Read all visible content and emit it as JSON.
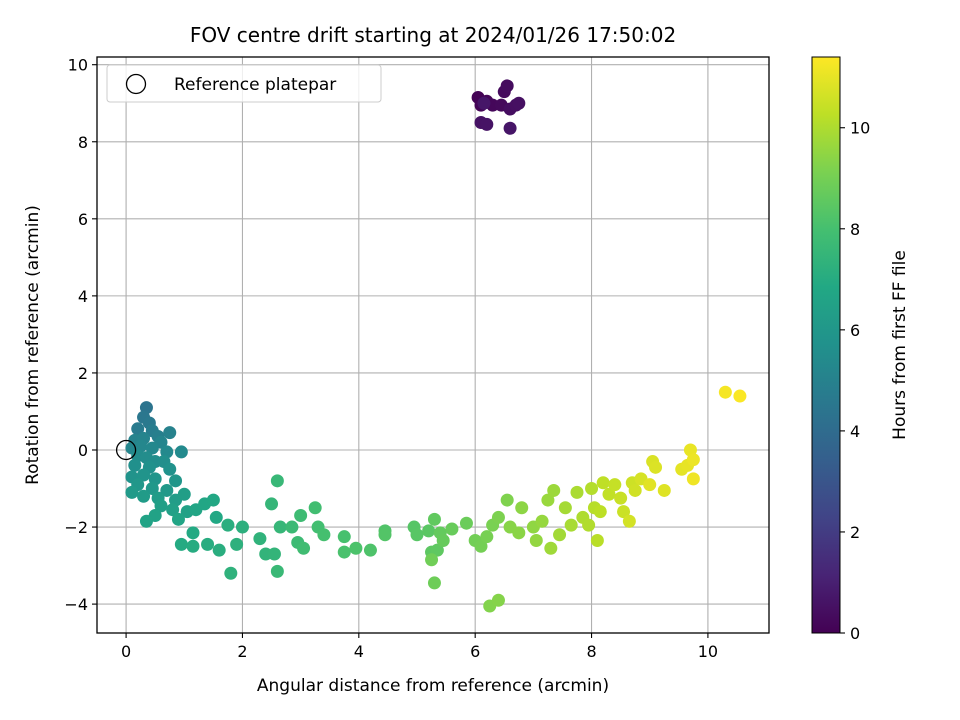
{
  "chart_data": {
    "type": "scatter",
    "title": "FOV centre drift starting at 2024/01/26 17:50:02",
    "xlabel": "Angular distance from reference (arcmin)",
    "ylabel": "Rotation from reference (arcmin)",
    "xlim": [
      -0.5,
      11.05
    ],
    "ylim": [
      -4.75,
      10.2
    ],
    "xticks": [
      "0",
      "2",
      "4",
      "6",
      "8",
      "10"
    ],
    "yticks": [
      "−4",
      "−2",
      "0",
      "2",
      "4",
      "6",
      "8",
      "10"
    ],
    "grid": true,
    "legend": {
      "placement": "upper-left",
      "label": "Reference platepar",
      "marker": "open-circle"
    },
    "reference_point": {
      "x": 0,
      "y": 0
    },
    "colorbar": {
      "label": "Hours from first FF file",
      "colormap": "viridis",
      "range": [
        0,
        11.4
      ],
      "ticks": [
        "0",
        "2",
        "4",
        "6",
        "8",
        "10"
      ]
    },
    "series": [
      {
        "color_variable": "hours",
        "points": [
          {
            "x": 6.05,
            "y": 9.15,
            "h": 0.05
          },
          {
            "x": 6.1,
            "y": 8.95,
            "h": 0.1
          },
          {
            "x": 6.2,
            "y": 9.05,
            "h": 0.15
          },
          {
            "x": 6.3,
            "y": 8.95,
            "h": 0.2
          },
          {
            "x": 6.45,
            "y": 8.95,
            "h": 0.25
          },
          {
            "x": 6.5,
            "y": 9.3,
            "h": 0.3
          },
          {
            "x": 6.55,
            "y": 9.45,
            "h": 0.35
          },
          {
            "x": 6.6,
            "y": 8.85,
            "h": 0.4
          },
          {
            "x": 6.7,
            "y": 8.95,
            "h": 0.45
          },
          {
            "x": 6.75,
            "y": 9.0,
            "h": 0.5
          },
          {
            "x": 6.1,
            "y": 8.5,
            "h": 0.55
          },
          {
            "x": 6.2,
            "y": 8.45,
            "h": 0.6
          },
          {
            "x": 6.6,
            "y": 8.35,
            "h": 0.65
          },
          {
            "x": 6.15,
            "y": 9.0,
            "h": 0.7
          },
          {
            "x": 0.35,
            "y": 1.1,
            "h": 4.4
          },
          {
            "x": 0.3,
            "y": 0.85,
            "h": 4.5
          },
          {
            "x": 0.4,
            "y": 0.7,
            "h": 4.6
          },
          {
            "x": 0.2,
            "y": 0.55,
            "h": 4.7
          },
          {
            "x": 0.45,
            "y": 0.5,
            "h": 4.8
          },
          {
            "x": 0.55,
            "y": 0.35,
            "h": 4.9
          },
          {
            "x": 0.75,
            "y": 0.45,
            "h": 5.0
          },
          {
            "x": 0.15,
            "y": 0.25,
            "h": 5.05
          },
          {
            "x": 0.3,
            "y": 0.3,
            "h": 5.1
          },
          {
            "x": 0.6,
            "y": 0.2,
            "h": 5.15
          },
          {
            "x": 0.1,
            "y": 0.05,
            "h": 5.2
          },
          {
            "x": 0.25,
            "y": 0.1,
            "h": 5.25
          },
          {
            "x": 0.45,
            "y": 0.05,
            "h": 5.3
          },
          {
            "x": 0.7,
            "y": -0.05,
            "h": 5.35
          },
          {
            "x": 0.95,
            "y": -0.05,
            "h": 5.4
          },
          {
            "x": 0.2,
            "y": -0.15,
            "h": 5.45
          },
          {
            "x": 0.35,
            "y": -0.2,
            "h": 5.5
          },
          {
            "x": 0.5,
            "y": -0.3,
            "h": 5.55
          },
          {
            "x": 0.65,
            "y": -0.3,
            "h": 5.6
          },
          {
            "x": 0.15,
            "y": -0.4,
            "h": 5.65
          },
          {
            "x": 0.4,
            "y": -0.45,
            "h": 5.7
          },
          {
            "x": 0.75,
            "y": -0.5,
            "h": 5.75
          },
          {
            "x": 0.1,
            "y": -0.7,
            "h": 5.8
          },
          {
            "x": 0.3,
            "y": -0.65,
            "h": 5.85
          },
          {
            "x": 0.5,
            "y": -0.75,
            "h": 5.9
          },
          {
            "x": 0.85,
            "y": -0.8,
            "h": 5.95
          },
          {
            "x": 0.2,
            "y": -0.9,
            "h": 6.0
          },
          {
            "x": 0.45,
            "y": -1.0,
            "h": 6.05
          },
          {
            "x": 0.7,
            "y": -1.05,
            "h": 6.1
          },
          {
            "x": 0.1,
            "y": -1.1,
            "h": 6.15
          },
          {
            "x": 0.3,
            "y": -1.2,
            "h": 6.2
          },
          {
            "x": 0.55,
            "y": -1.25,
            "h": 6.25
          },
          {
            "x": 0.85,
            "y": -1.3,
            "h": 6.3
          },
          {
            "x": 1.0,
            "y": -1.15,
            "h": 6.35
          },
          {
            "x": 0.6,
            "y": -1.45,
            "h": 6.4
          },
          {
            "x": 0.8,
            "y": -1.55,
            "h": 6.45
          },
          {
            "x": 1.05,
            "y": -1.6,
            "h": 6.5
          },
          {
            "x": 0.5,
            "y": -1.7,
            "h": 6.55
          },
          {
            "x": 0.35,
            "y": -1.85,
            "h": 6.6
          },
          {
            "x": 0.9,
            "y": -1.8,
            "h": 6.65
          },
          {
            "x": 1.2,
            "y": -1.55,
            "h": 6.7
          },
          {
            "x": 1.35,
            "y": -1.4,
            "h": 6.75
          },
          {
            "x": 1.5,
            "y": -1.3,
            "h": 6.8
          },
          {
            "x": 1.55,
            "y": -1.75,
            "h": 6.85
          },
          {
            "x": 1.15,
            "y": -2.15,
            "h": 6.9
          },
          {
            "x": 0.95,
            "y": -2.45,
            "h": 6.95
          },
          {
            "x": 1.15,
            "y": -2.5,
            "h": 7.0
          },
          {
            "x": 1.4,
            "y": -2.45,
            "h": 7.05
          },
          {
            "x": 1.6,
            "y": -2.6,
            "h": 7.1
          },
          {
            "x": 1.75,
            "y": -1.95,
            "h": 7.15
          },
          {
            "x": 2.0,
            "y": -2.0,
            "h": 7.2
          },
          {
            "x": 1.9,
            "y": -2.45,
            "h": 7.25
          },
          {
            "x": 1.8,
            "y": -3.2,
            "h": 7.3
          },
          {
            "x": 2.3,
            "y": -2.3,
            "h": 7.35
          },
          {
            "x": 2.4,
            "y": -2.7,
            "h": 7.4
          },
          {
            "x": 2.55,
            "y": -2.7,
            "h": 7.45
          },
          {
            "x": 2.5,
            "y": -1.4,
            "h": 7.5
          },
          {
            "x": 2.65,
            "y": -2.0,
            "h": 7.55
          },
          {
            "x": 2.6,
            "y": -0.8,
            "h": 7.6
          },
          {
            "x": 2.6,
            "y": -3.15,
            "h": 7.65
          },
          {
            "x": 2.85,
            "y": -2.0,
            "h": 7.7
          },
          {
            "x": 2.95,
            "y": -2.4,
            "h": 7.75
          },
          {
            "x": 3.0,
            "y": -1.7,
            "h": 7.8
          },
          {
            "x": 3.05,
            "y": -2.55,
            "h": 7.85
          },
          {
            "x": 3.25,
            "y": -1.5,
            "h": 7.9
          },
          {
            "x": 3.3,
            "y": -2.0,
            "h": 7.95
          },
          {
            "x": 3.4,
            "y": -2.2,
            "h": 8.0
          },
          {
            "x": 3.75,
            "y": -2.25,
            "h": 8.05
          },
          {
            "x": 3.75,
            "y": -2.65,
            "h": 8.1
          },
          {
            "x": 3.95,
            "y": -2.55,
            "h": 8.15
          },
          {
            "x": 4.2,
            "y": -2.6,
            "h": 8.2
          },
          {
            "x": 4.45,
            "y": -2.1,
            "h": 8.25
          },
          {
            "x": 4.45,
            "y": -2.2,
            "h": 8.3
          },
          {
            "x": 4.95,
            "y": -2.0,
            "h": 8.35
          },
          {
            "x": 5.0,
            "y": -2.2,
            "h": 8.4
          },
          {
            "x": 5.2,
            "y": -2.1,
            "h": 8.45
          },
          {
            "x": 5.25,
            "y": -2.65,
            "h": 8.5
          },
          {
            "x": 5.35,
            "y": -2.6,
            "h": 8.55
          },
          {
            "x": 5.3,
            "y": -1.8,
            "h": 8.6
          },
          {
            "x": 5.4,
            "y": -2.15,
            "h": 8.65
          },
          {
            "x": 5.45,
            "y": -2.35,
            "h": 8.7
          },
          {
            "x": 5.6,
            "y": -2.05,
            "h": 8.75
          },
          {
            "x": 5.85,
            "y": -1.9,
            "h": 8.8
          },
          {
            "x": 5.3,
            "y": -3.45,
            "h": 8.85
          },
          {
            "x": 5.25,
            "y": -2.85,
            "h": 8.9
          },
          {
            "x": 6.0,
            "y": -2.35,
            "h": 8.95
          },
          {
            "x": 6.1,
            "y": -2.5,
            "h": 9.0
          },
          {
            "x": 6.2,
            "y": -2.25,
            "h": 9.05
          },
          {
            "x": 6.3,
            "y": -1.95,
            "h": 9.1
          },
          {
            "x": 6.4,
            "y": -1.75,
            "h": 9.15
          },
          {
            "x": 6.55,
            "y": -1.3,
            "h": 9.2
          },
          {
            "x": 6.25,
            "y": -4.05,
            "h": 9.25
          },
          {
            "x": 6.4,
            "y": -3.9,
            "h": 9.3
          },
          {
            "x": 6.6,
            "y": -2.0,
            "h": 9.35
          },
          {
            "x": 6.75,
            "y": -2.15,
            "h": 9.4
          },
          {
            "x": 6.8,
            "y": -1.5,
            "h": 9.45
          },
          {
            "x": 7.0,
            "y": -2.0,
            "h": 9.5
          },
          {
            "x": 7.05,
            "y": -2.35,
            "h": 9.55
          },
          {
            "x": 7.15,
            "y": -1.85,
            "h": 9.6
          },
          {
            "x": 7.25,
            "y": -1.3,
            "h": 9.65
          },
          {
            "x": 7.35,
            "y": -1.05,
            "h": 9.7
          },
          {
            "x": 7.3,
            "y": -2.55,
            "h": 9.75
          },
          {
            "x": 7.45,
            "y": -2.2,
            "h": 9.8
          },
          {
            "x": 7.55,
            "y": -1.5,
            "h": 9.85
          },
          {
            "x": 7.65,
            "y": -1.95,
            "h": 9.9
          },
          {
            "x": 7.75,
            "y": -1.1,
            "h": 9.95
          },
          {
            "x": 7.85,
            "y": -1.75,
            "h": 10.0
          },
          {
            "x": 7.95,
            "y": -1.95,
            "h": 10.05
          },
          {
            "x": 8.0,
            "y": -1.0,
            "h": 10.1
          },
          {
            "x": 8.05,
            "y": -1.5,
            "h": 10.15
          },
          {
            "x": 8.1,
            "y": -2.35,
            "h": 10.2
          },
          {
            "x": 8.15,
            "y": -1.6,
            "h": 10.25
          },
          {
            "x": 8.2,
            "y": -0.85,
            "h": 10.3
          },
          {
            "x": 8.3,
            "y": -1.15,
            "h": 10.35
          },
          {
            "x": 8.4,
            "y": -0.9,
            "h": 10.4
          },
          {
            "x": 8.5,
            "y": -1.25,
            "h": 10.45
          },
          {
            "x": 8.55,
            "y": -1.6,
            "h": 10.5
          },
          {
            "x": 8.7,
            "y": -0.85,
            "h": 10.55
          },
          {
            "x": 8.75,
            "y": -1.05,
            "h": 10.6
          },
          {
            "x": 8.65,
            "y": -1.85,
            "h": 10.65
          },
          {
            "x": 8.85,
            "y": -0.75,
            "h": 10.7
          },
          {
            "x": 9.05,
            "y": -0.3,
            "h": 10.75
          },
          {
            "x": 9.1,
            "y": -0.45,
            "h": 10.8
          },
          {
            "x": 9.25,
            "y": -1.05,
            "h": 10.85
          },
          {
            "x": 9.0,
            "y": -0.9,
            "h": 10.9
          },
          {
            "x": 9.55,
            "y": -0.5,
            "h": 10.95
          },
          {
            "x": 9.65,
            "y": -0.4,
            "h": 11.0
          },
          {
            "x": 9.7,
            "y": 0.0,
            "h": 11.05
          },
          {
            "x": 9.75,
            "y": -0.25,
            "h": 11.1
          },
          {
            "x": 9.75,
            "y": -0.75,
            "h": 11.15
          },
          {
            "x": 10.3,
            "y": 1.5,
            "h": 11.25
          },
          {
            "x": 10.55,
            "y": 1.4,
            "h": 11.35
          }
        ]
      }
    ]
  }
}
